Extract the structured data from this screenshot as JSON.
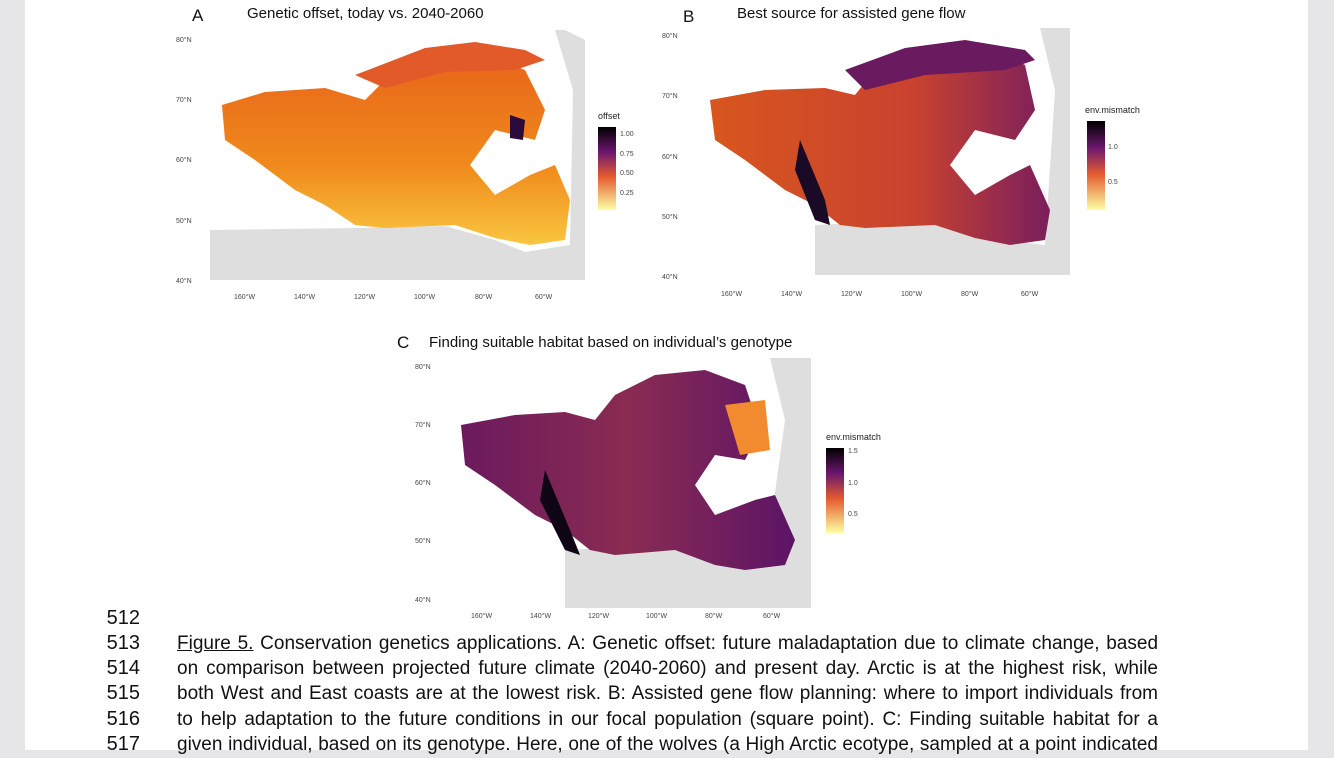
{
  "panels": [
    {
      "letter": "A",
      "title": "Genetic offset, today vs. 2040-2060",
      "lat": [
        "80°N",
        "70°N",
        "60°N",
        "50°N",
        "40°N"
      ],
      "lon": [
        "160°W",
        "140°W",
        "120°W",
        "100°W",
        "80°W",
        "60°W"
      ],
      "legend_title": "offset",
      "legend_ticks": [
        "1.00",
        "0.75",
        "0.50",
        "0.25"
      ]
    },
    {
      "letter": "B",
      "title": "Best source for assisted gene flow",
      "lat": [
        "80°N",
        "70°N",
        "60°N",
        "50°N",
        "40°N"
      ],
      "lon": [
        "160°W",
        "140°W",
        "120°W",
        "100°W",
        "80°W",
        "60°W"
      ],
      "legend_title": "env.mismatch",
      "legend_ticks": [
        "1.0",
        "0.5"
      ]
    },
    {
      "letter": "C",
      "title": "Finding suitable habitat based on individual’s genotype",
      "lat": [
        "80°N",
        "70°N",
        "60°N",
        "50°N",
        "40°N"
      ],
      "lon": [
        "160°W",
        "140°W",
        "120°W",
        "100°W",
        "80°W",
        "60°W"
      ],
      "legend_title": "env.mismatch",
      "legend_ticks": [
        "1.5",
        "1.0",
        "0.5"
      ]
    }
  ],
  "caption": {
    "line_numbers": [
      "512",
      "513",
      "514",
      "515",
      "516",
      "517"
    ],
    "figure_label": "Figure 5.",
    "lines": [
      " Conservation genetics applications. A: Genetic offset: future maladaptation due to climate change, based",
      "on comparison between projected future climate (2040-2060) and present day. Arctic is at the highest risk, while",
      "both West and East coasts are at the lowest risk. B: Assisted gene flow planning: where to import individuals from",
      "to help adaptation to the future conditions in our focal population (square point). C: Finding suitable habitat for a",
      "given individual, based on its genotype. Here, one of the wolves (a High Arctic ecotype, sampled at a point indicated"
    ]
  }
}
